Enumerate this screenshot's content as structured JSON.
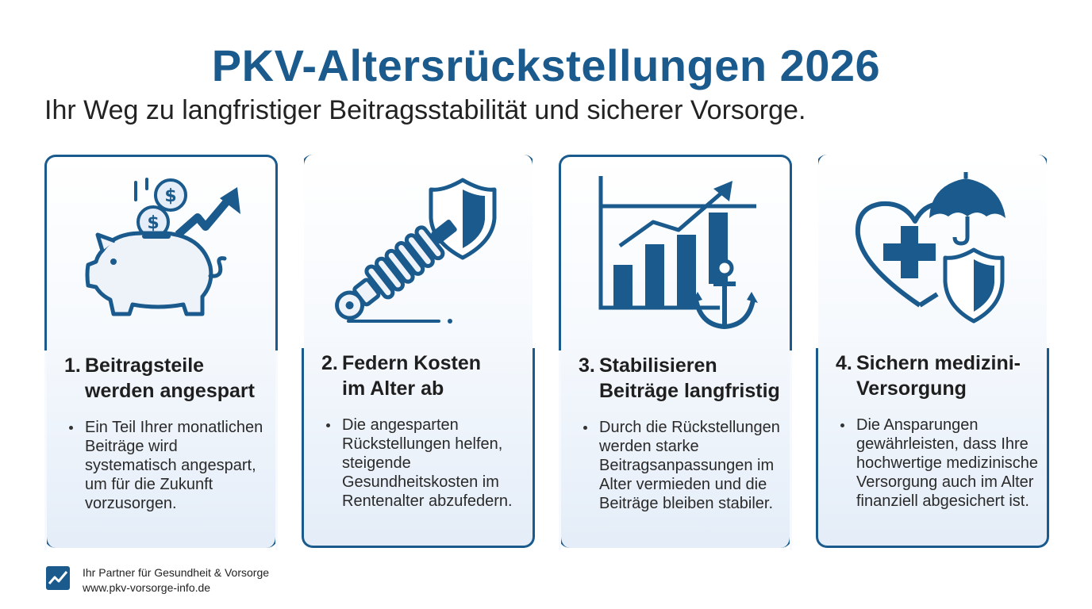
{
  "header": {
    "title": "PKV-Altersrückstellungen 2026",
    "subtitle": "Ihr Weg zu langfristiger Beitragsstabilität und sicherer Vorsorge."
  },
  "colors": {
    "primary": "#1b5a8c",
    "card_gradient_bottom": "#e4edf8"
  },
  "cards": [
    {
      "icon": "piggy-bank-coins-growth-icon",
      "number": "1.",
      "title_line1": "Beitragsteile",
      "title_line2": "werden angespart",
      "bullet": "Ein Teil Ihrer monatlichen Beiträge wird systematisch angespart, um für die Zukunft vorzusorgen."
    },
    {
      "icon": "spring-shield-icon",
      "number": "2.",
      "title_line1": "Federn Kosten",
      "title_line2": "im Alter ab",
      "bullet": "Die angesparten Rückstellungen helfen, steigende Gesundheitskosten im Rentenalter abzufedern."
    },
    {
      "icon": "bar-chart-anchor-icon",
      "number": "3.",
      "title_line1": "Stabilisieren",
      "title_line2": "Beiträge langfristig",
      "bullet": "Durch die Rückstellungen werden starke Beitragsanpassungen im Alter vermieden und die Beiträge bleiben stabiler."
    },
    {
      "icon": "heart-umbrella-shield-icon",
      "number": "4.",
      "title_line1": "Sichern medizini-",
      "title_line2": "Versorgung",
      "bullet": "Die Ansparungen gewährleisten, dass Ihre hochwertige medizinische Versorgung auch im Alter finanziell abgesichert ist."
    }
  ],
  "footer": {
    "tagline": "Ihr Partner für Gesundheit & Vorsorge",
    "website": "www.pkv-vorsorge-info.de",
    "logo_icon": "chart-check-logo-icon"
  }
}
